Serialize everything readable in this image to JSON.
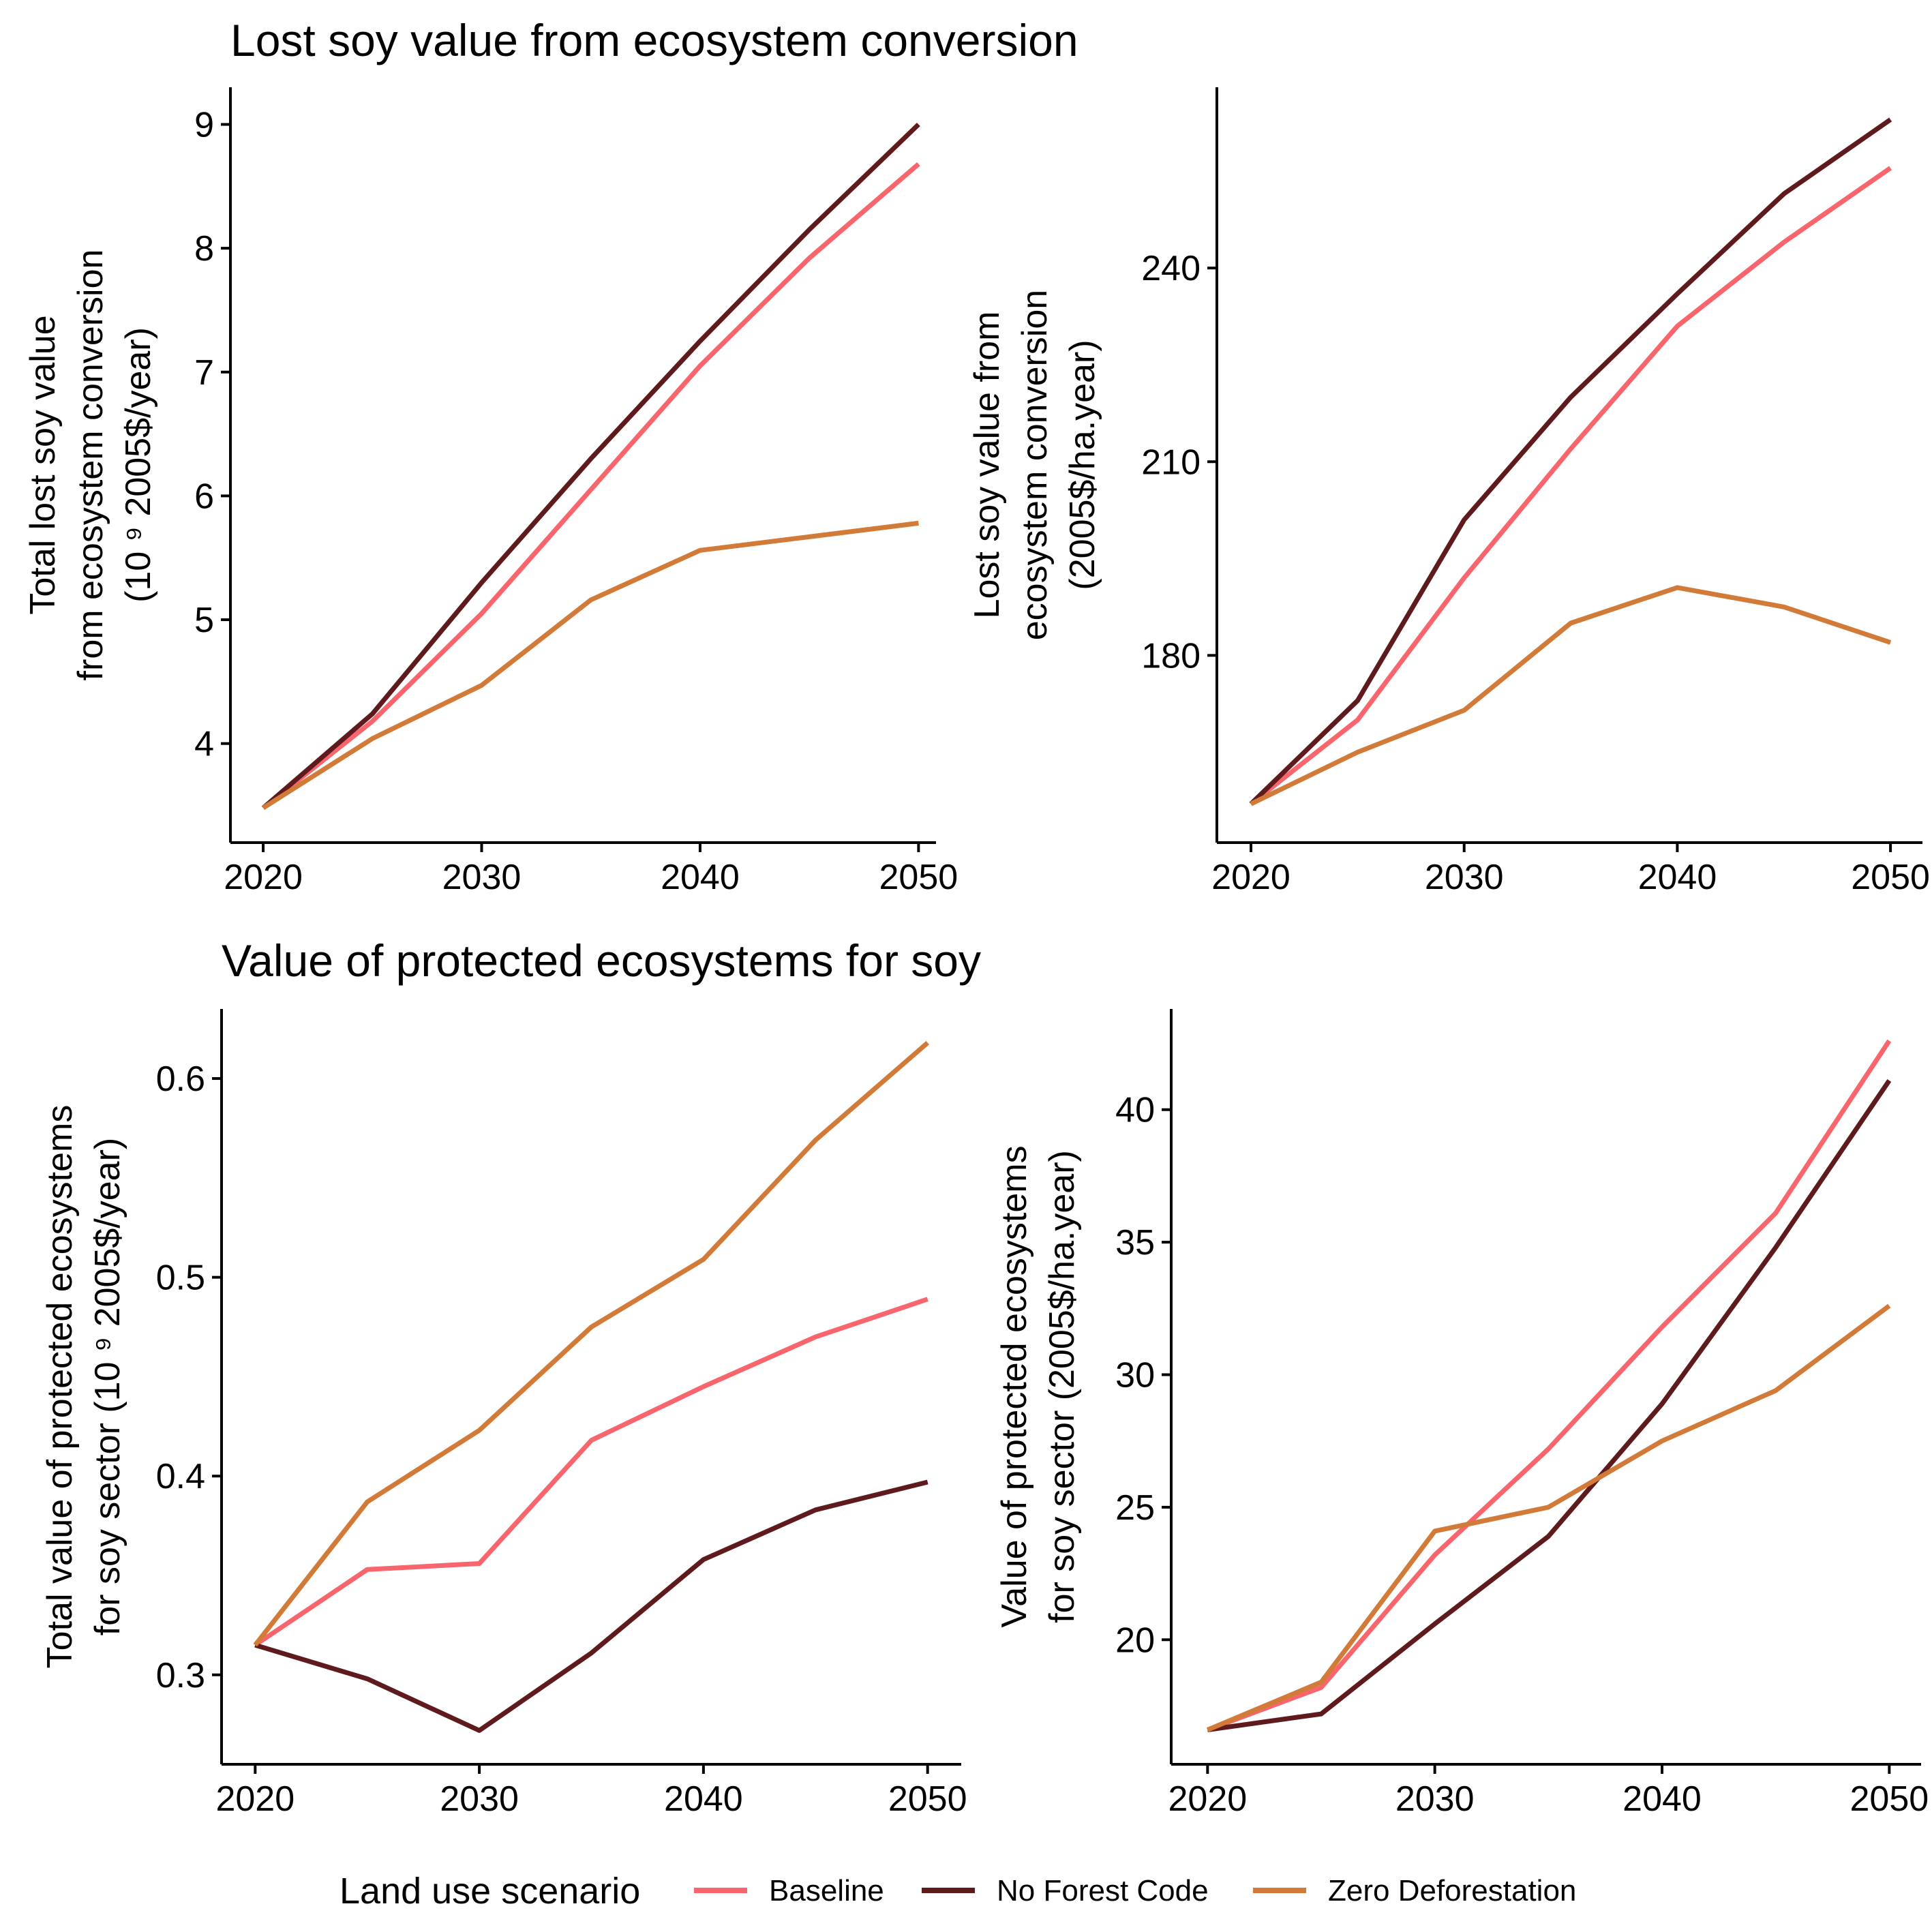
{
  "titles": {
    "top": "Lost soy value from ecosystem conversion",
    "bottom": "Value of protected ecosystems for soy"
  },
  "legend": {
    "title": "Land use scenario"
  },
  "colors": {
    "Baseline": "#F8656D",
    "No Forest Code": "#5E1A1C",
    "Zero Deforestation": "#D27A38"
  },
  "chart_data": [
    {
      "type": "line",
      "ylabel_lines": [
        "Total lost soy value",
        "from ecosystem conversion",
        "(10 ⁹ 2005$/year)"
      ],
      "xlim": [
        2018.5,
        2050.8
      ],
      "ylim": [
        3.2,
        9.3
      ],
      "xticks": [
        2020,
        2030,
        2040,
        2050
      ],
      "yticks": [
        4,
        5,
        6,
        7,
        8,
        9
      ],
      "x": [
        2020,
        2025,
        2030,
        2035,
        2040,
        2045,
        2050
      ],
      "series": [
        {
          "name": "Baseline",
          "values": [
            3.48,
            4.18,
            5.05,
            6.05,
            7.05,
            7.92,
            8.68
          ]
        },
        {
          "name": "No Forest Code",
          "values": [
            3.48,
            4.24,
            5.3,
            6.3,
            7.25,
            8.15,
            9.0
          ]
        },
        {
          "name": "Zero Deforestation",
          "values": [
            3.48,
            4.04,
            4.47,
            5.16,
            5.56,
            5.67,
            5.78
          ]
        }
      ]
    },
    {
      "type": "line",
      "ylabel_lines": [
        "Lost soy value from",
        "ecosystem conversion",
        "(2005$/ha.year)"
      ],
      "xlim": [
        2018.4,
        2051.5
      ],
      "ylim": [
        151,
        268
      ],
      "xticks": [
        2020,
        2030,
        2040,
        2050
      ],
      "yticks": [
        180,
        210,
        240
      ],
      "x": [
        2020,
        2025,
        2030,
        2035,
        2040,
        2045,
        2050
      ],
      "series": [
        {
          "name": "Baseline",
          "values": [
            157,
            170,
            192,
            212,
            231,
            244,
            255.5
          ]
        },
        {
          "name": "No Forest Code",
          "values": [
            157,
            173,
            201,
            220,
            236,
            251.5,
            263
          ]
        },
        {
          "name": "Zero Deforestation",
          "values": [
            157,
            165,
            171.5,
            185,
            190.5,
            187.5,
            182
          ]
        }
      ]
    },
    {
      "type": "line",
      "ylabel_lines": [
        "Total value of protected ecosystems",
        "for soy sector  (10 ⁹ 2005$/year)"
      ],
      "xlim": [
        2018.5,
        2051.5
      ],
      "ylim": [
        0.255,
        0.635
      ],
      "xticks": [
        2020,
        2030,
        2040,
        2050
      ],
      "yticks": [
        0.3,
        0.4,
        0.5,
        0.6
      ],
      "x": [
        2020,
        2025,
        2030,
        2035,
        2040,
        2045,
        2050
      ],
      "series": [
        {
          "name": "Baseline",
          "values": [
            0.315,
            0.353,
            0.356,
            0.418,
            0.445,
            0.47,
            0.489
          ]
        },
        {
          "name": "No Forest Code",
          "values": [
            0.315,
            0.298,
            0.272,
            0.311,
            0.358,
            0.383,
            0.397
          ]
        },
        {
          "name": "Zero Deforestation",
          "values": [
            0.315,
            0.387,
            0.423,
            0.475,
            0.509,
            0.569,
            0.618
          ]
        }
      ]
    },
    {
      "type": "line",
      "ylabel_lines": [
        "Value of protected ecosystems",
        "for soy sector  (2005$/ha.year)"
      ],
      "xlim": [
        2018.4,
        2051.4
      ],
      "ylim": [
        15.3,
        43.8
      ],
      "xticks": [
        2020,
        2030,
        2040,
        2050
      ],
      "yticks": [
        20,
        25,
        30,
        35,
        40
      ],
      "x": [
        2020,
        2025,
        2030,
        2035,
        2040,
        2045,
        2050
      ],
      "series": [
        {
          "name": "Baseline",
          "values": [
            16.6,
            18.2,
            23.2,
            27.2,
            31.8,
            36.1,
            42.6
          ]
        },
        {
          "name": "No Forest Code",
          "values": [
            16.6,
            17.2,
            20.6,
            23.9,
            28.9,
            34.8,
            41.1
          ]
        },
        {
          "name": "Zero Deforestation",
          "values": [
            16.6,
            18.4,
            24.1,
            25.0,
            27.5,
            29.4,
            32.6
          ]
        }
      ]
    }
  ]
}
